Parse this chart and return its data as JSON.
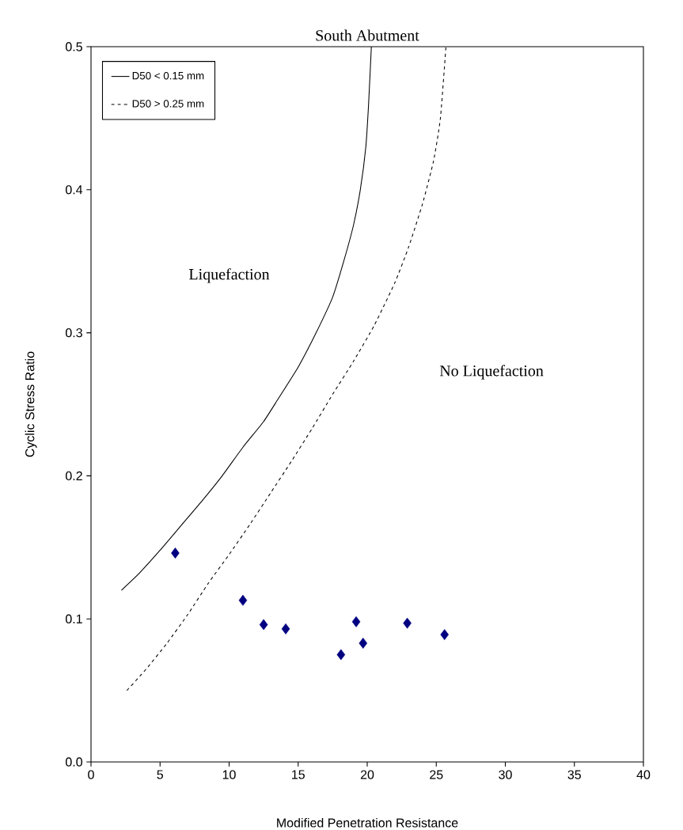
{
  "chart_data": {
    "type": "line",
    "title": "South Abutment",
    "xlabel": "Modified Penetration Resistance",
    "ylabel": "Cyclic Stress Ratio",
    "annotations": [
      "Liquefaction",
      "No Liquefaction"
    ],
    "xlim": [
      0,
      40
    ],
    "ylim": [
      0,
      0.5
    ],
    "xticks": [
      0,
      5,
      10,
      15,
      20,
      25,
      30,
      35,
      40
    ],
    "yticks": [
      {
        "value": 0,
        "label": "0.0"
      },
      0.1,
      0.2,
      0.3,
      0.4,
      0.5
    ],
    "grid": false,
    "legend": "top left",
    "series": [
      {
        "name": "D50 < 0.15 mm",
        "line_style": "solid",
        "marker": "none",
        "color": "#000000",
        "x": [
          2.2,
          3.5,
          5,
          6.5,
          8,
          9.5,
          11,
          12.5,
          13.5,
          15,
          16.3,
          17.5,
          18.3,
          19,
          19.5,
          19.9,
          20.1,
          20.3
        ],
        "values": [
          0.12,
          0.132,
          0.148,
          0.165,
          0.182,
          0.2,
          0.22,
          0.238,
          0.253,
          0.276,
          0.3,
          0.325,
          0.35,
          0.375,
          0.4,
          0.43,
          0.46,
          0.5
        ]
      },
      {
        "name": "D50 > 0.25 mm",
        "line_style": "dashed",
        "marker": "none",
        "color": "#000000",
        "x": [
          2.6,
          4,
          5.5,
          7,
          8.5,
          10,
          11.5,
          13,
          14.5,
          16,
          17.5,
          19,
          20.5,
          22,
          23,
          24,
          24.8,
          25.3,
          25.7
        ],
        "values": [
          0.05,
          0.065,
          0.083,
          0.103,
          0.125,
          0.145,
          0.166,
          0.188,
          0.21,
          0.233,
          0.257,
          0.28,
          0.305,
          0.335,
          0.36,
          0.39,
          0.42,
          0.45,
          0.5
        ]
      },
      {
        "type": "scatter",
        "marker": "diamond",
        "color": "#000080",
        "x": [
          6.1,
          11.0,
          12.5,
          14.1,
          18.1,
          19.2,
          19.7,
          22.9,
          25.6
        ],
        "values": [
          0.146,
          0.113,
          0.096,
          0.093,
          0.075,
          0.098,
          0.083,
          0.097,
          0.089
        ]
      }
    ]
  }
}
